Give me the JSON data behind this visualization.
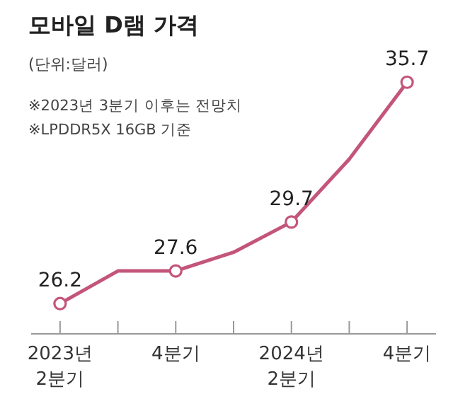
{
  "chart_data": {
    "type": "line",
    "title": "모바일 D램 가격",
    "subtitle": "(단위:달러)",
    "annotations": [
      "※2023년 3분기 이후는 전망치",
      "※LPDDR5X 16GB 기준"
    ],
    "categories": [
      "2023년\n2분기",
      null,
      "4분기",
      null,
      "2024년\n2분기",
      null,
      "4분기"
    ],
    "series": [
      {
        "color": "#c4557a",
        "values": [
          26.2,
          27.6,
          27.6,
          28.4,
          29.7,
          32.4,
          35.7
        ],
        "value_labels": [
          "26.2",
          null,
          "27.6",
          null,
          "29.7",
          null,
          "35.7"
        ]
      }
    ],
    "tick_labels": "x",
    "marker": "circle"
  }
}
